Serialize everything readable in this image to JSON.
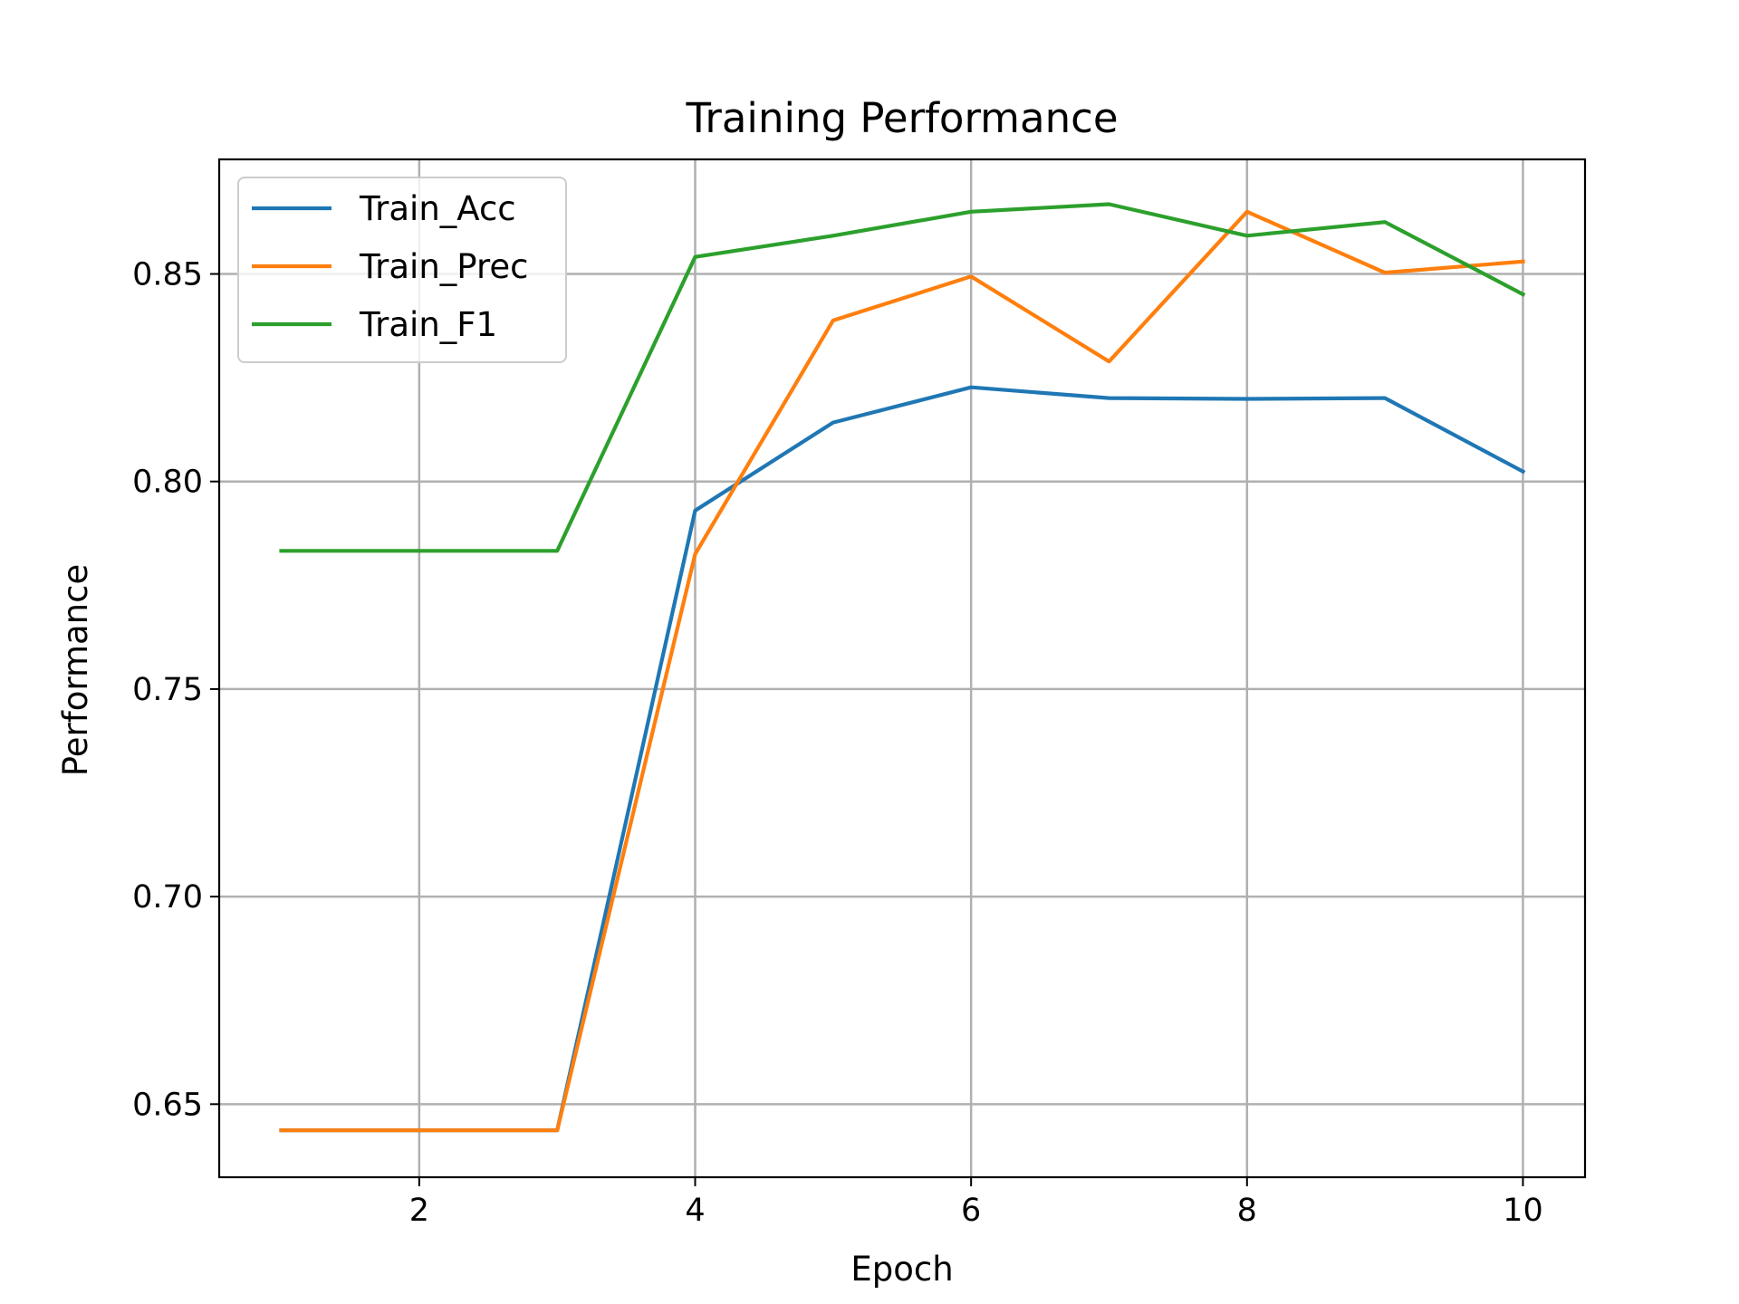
{
  "chart_data": {
    "type": "line",
    "title": "Training Performance",
    "xlabel": "Epoch",
    "ylabel": "Performance",
    "x": [
      1,
      2,
      3,
      4,
      5,
      6,
      7,
      8,
      9,
      10
    ],
    "xlim": [
      0.55,
      10.45
    ],
    "ylim": [
      0.6324,
      0.8776
    ],
    "xticks": [
      2,
      4,
      6,
      8,
      10
    ],
    "xtick_labels": [
      "2",
      "4",
      "6",
      "8",
      "10"
    ],
    "yticks": [
      0.65,
      0.7,
      0.75,
      0.8,
      0.85
    ],
    "ytick_labels": [
      "0.65",
      "0.70",
      "0.75",
      "0.80",
      "0.85"
    ],
    "grid": true,
    "legend_position": "top-left",
    "series": [
      {
        "name": "Train_Acc",
        "color": "#1f77b4",
        "values": [
          0.6437,
          0.6437,
          0.6437,
          0.793,
          0.8142,
          0.8227,
          0.8201,
          0.8199,
          0.8201,
          0.8024
        ]
      },
      {
        "name": "Train_Prec",
        "color": "#ff7f0e",
        "values": [
          0.6437,
          0.6437,
          0.6437,
          0.7825,
          0.8388,
          0.8494,
          0.8289,
          0.865,
          0.8503,
          0.853
        ]
      },
      {
        "name": "Train_F1",
        "color": "#2ca02c",
        "values": [
          0.7833,
          0.7833,
          0.7833,
          0.8541,
          0.8592,
          0.865,
          0.8668,
          0.8592,
          0.8625,
          0.8451
        ]
      }
    ]
  }
}
